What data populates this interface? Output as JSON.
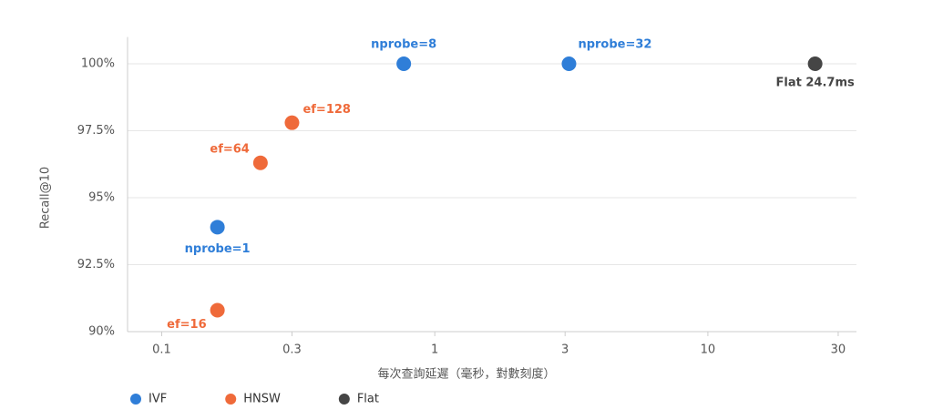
{
  "chart_data": {
    "type": "scatter",
    "x_label": "每次查詢延遲（毫秒，對數刻度）",
    "y_label": "Recall@10",
    "xscale": "log",
    "xlim": [
      0.075,
      35
    ],
    "xticks": [
      0.1,
      0.3,
      1,
      3,
      10,
      30
    ],
    "ylim": [
      90,
      101
    ],
    "yticks": [
      {
        "value": 90,
        "label": "90%"
      },
      {
        "value": 92.5,
        "label": "92.5%"
      },
      {
        "value": 95,
        "label": "95%"
      },
      {
        "value": 97.5,
        "label": "97.5%"
      },
      {
        "value": 100,
        "label": "100%"
      }
    ],
    "grid": true,
    "legend": "bottom-left",
    "series": [
      {
        "name": "IVF",
        "color": "#2f7ed8",
        "x": [
          0.16,
          0.77,
          3.1
        ],
        "values": [
          93.9,
          100,
          100
        ],
        "point_labels": [
          "nprobe=1",
          "nprobe=8",
          "nprobe=32"
        ]
      },
      {
        "name": "HNSW",
        "color": "#ef6a3a",
        "x": [
          0.16,
          0.23,
          0.3
        ],
        "values": [
          90.8,
          96.3,
          97.8
        ],
        "point_labels": [
          "ef=16",
          "ef=64",
          "ef=128"
        ]
      },
      {
        "name": "Flat",
        "color": "#454545",
        "x": [
          24.7
        ],
        "values": [
          100
        ],
        "point_labels": [
          "Flat 24.7ms"
        ]
      }
    ]
  }
}
